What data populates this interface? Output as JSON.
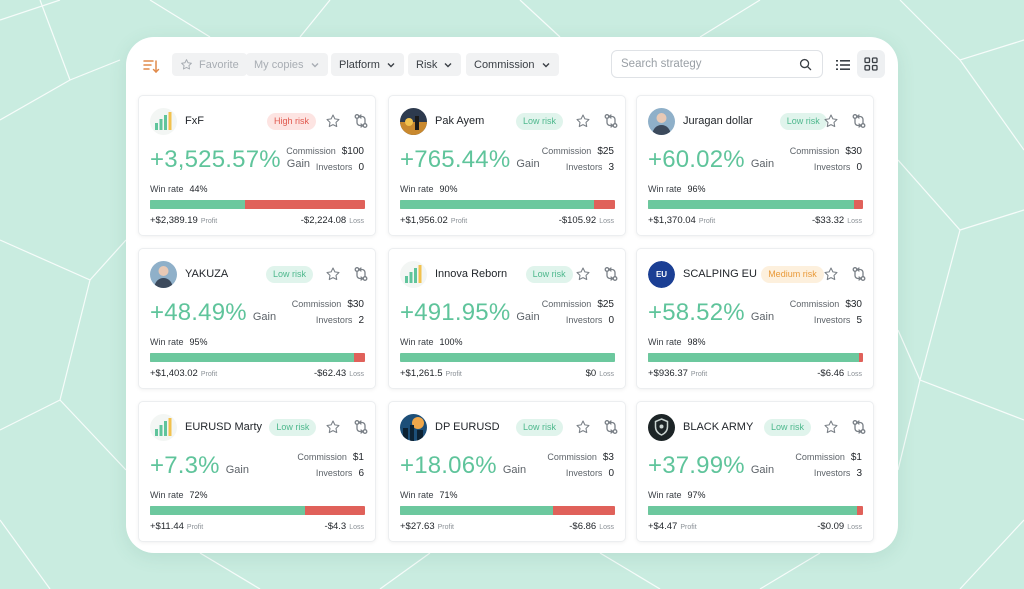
{
  "toolbar": {
    "favorite": "Favorite",
    "my_copies": "My copies",
    "platform": "Platform",
    "risk": "Risk",
    "commission": "Commission",
    "search_placeholder": "Search strategy"
  },
  "labels": {
    "gain": "Gain",
    "commission": "Commission",
    "investors": "Investors",
    "win_rate": "Win rate",
    "profit": "Profit",
    "loss": "Loss"
  },
  "colors": {
    "accent": "#5fc49b",
    "profit_bar": "#6cc89e",
    "loss_bar": "#e0615a",
    "background": "#c9ece0"
  },
  "cards": [
    {
      "name": "FxF",
      "risk": "High risk",
      "risk_level": "high",
      "gain": "+3,525.57%",
      "commission": "$100",
      "investors": "0",
      "win_rate": "44%",
      "win_fraction": 0.44,
      "profit": "+$2,389.19",
      "loss": "-$2,224.08",
      "avatar_icon": "chart-logo-icon"
    },
    {
      "name": "Pak Ayem",
      "risk": "Low risk",
      "risk_level": "low",
      "gain": "+765.44%",
      "commission": "$25",
      "investors": "3",
      "win_rate": "90%",
      "win_fraction": 0.9,
      "profit": "+$1,956.02",
      "loss": "-$105.92",
      "avatar_icon": "sunset-photo-icon"
    },
    {
      "name": "Juragan dollar",
      "risk": "Low risk",
      "risk_level": "low",
      "gain": "+60.02%",
      "commission": "$30",
      "investors": "0",
      "win_rate": "96%",
      "win_fraction": 0.96,
      "profit": "+$1,370.04",
      "loss": "-$33.32",
      "avatar_icon": "person-photo-icon"
    },
    {
      "name": "YAKUZA",
      "risk": "Low risk",
      "risk_level": "low",
      "gain": "+48.49%",
      "commission": "$30",
      "investors": "2",
      "win_rate": "95%",
      "win_fraction": 0.95,
      "profit": "+$1,403.02",
      "loss": "-$62.43",
      "avatar_icon": "person-photo-icon"
    },
    {
      "name": "Innova Reborn",
      "risk": "Low risk",
      "risk_level": "low",
      "gain": "+491.95%",
      "commission": "$25",
      "investors": "0",
      "win_rate": "100%",
      "win_fraction": 1.0,
      "profit": "+$1,261.5",
      "loss": "$0",
      "avatar_icon": "chart-logo-icon"
    },
    {
      "name": "SCALPING EU",
      "risk": "Medium risk",
      "risk_level": "medium",
      "gain": "+58.52%",
      "commission": "$30",
      "investors": "5",
      "win_rate": "98%",
      "win_fraction": 0.98,
      "profit": "+$936.37",
      "loss": "-$6.46",
      "avatar_icon": "eu-flag-icon",
      "avatar_text": "EU"
    },
    {
      "name": "EURUSD Marty",
      "risk": "Low risk",
      "risk_level": "low",
      "gain": "+7.3%",
      "commission": "$1",
      "investors": "6",
      "win_rate": "72%",
      "win_fraction": 0.72,
      "profit": "+$11.44",
      "loss": "-$4.3",
      "avatar_icon": "chart-logo-icon"
    },
    {
      "name": "DP EURUSD",
      "risk": "Low risk",
      "risk_level": "low",
      "gain": "+18.06%",
      "commission": "$3",
      "investors": "0",
      "win_rate": "71%",
      "win_fraction": 0.71,
      "profit": "+$27.63",
      "loss": "-$6.86",
      "avatar_icon": "city-photo-icon"
    },
    {
      "name": "BLACK ARMY",
      "risk": "Low risk",
      "risk_level": "low",
      "gain": "+37.99%",
      "commission": "$1",
      "investors": "3",
      "win_rate": "97%",
      "win_fraction": 0.97,
      "profit": "+$4.47",
      "loss": "-$0.09",
      "avatar_icon": "shield-logo-icon"
    }
  ]
}
